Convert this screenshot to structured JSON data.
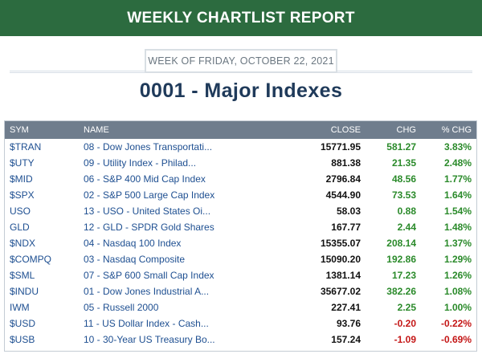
{
  "header": {
    "title": "WEEKLY CHARTLIST REPORT"
  },
  "week": {
    "label": "WEEK OF FRIDAY, OCTOBER 22, 2021"
  },
  "page": {
    "title": "0001 - Major Indexes"
  },
  "table": {
    "columns": {
      "sym": "SYM",
      "name": "NAME",
      "close": "CLOSE",
      "chg": "CHG",
      "pct": "% CHG"
    },
    "rows": [
      {
        "sym": "$TRAN",
        "name": "08 - Dow Jones Transportati...",
        "close": "15771.95",
        "chg": "581.27",
        "pct": "3.83%",
        "dir": "pos"
      },
      {
        "sym": "$UTY",
        "name": "09 - Utility Index - Philad...",
        "close": "881.38",
        "chg": "21.35",
        "pct": "2.48%",
        "dir": "pos"
      },
      {
        "sym": "$MID",
        "name": "06 - S&P 400 Mid Cap Index",
        "close": "2796.84",
        "chg": "48.56",
        "pct": "1.77%",
        "dir": "pos"
      },
      {
        "sym": "$SPX",
        "name": "02 - S&P 500 Large Cap Index",
        "close": "4544.90",
        "chg": "73.53",
        "pct": "1.64%",
        "dir": "pos"
      },
      {
        "sym": "USO",
        "name": "13 - USO - United States Oi...",
        "close": "58.03",
        "chg": "0.88",
        "pct": "1.54%",
        "dir": "pos"
      },
      {
        "sym": "GLD",
        "name": "12 - GLD - SPDR Gold Shares",
        "close": "167.77",
        "chg": "2.44",
        "pct": "1.48%",
        "dir": "pos"
      },
      {
        "sym": "$NDX",
        "name": "04 - Nasdaq 100 Index",
        "close": "15355.07",
        "chg": "208.14",
        "pct": "1.37%",
        "dir": "pos"
      },
      {
        "sym": "$COMPQ",
        "name": "03 - Nasdaq Composite",
        "close": "15090.20",
        "chg": "192.86",
        "pct": "1.29%",
        "dir": "pos"
      },
      {
        "sym": "$SML",
        "name": "07 - S&P 600 Small Cap Index",
        "close": "1381.14",
        "chg": "17.23",
        "pct": "1.26%",
        "dir": "pos"
      },
      {
        "sym": "$INDU",
        "name": "01 - Dow Jones Industrial A...",
        "close": "35677.02",
        "chg": "382.26",
        "pct": "1.08%",
        "dir": "pos"
      },
      {
        "sym": "IWM",
        "name": "05 - Russell 2000",
        "close": "227.41",
        "chg": "2.25",
        "pct": "1.00%",
        "dir": "pos"
      },
      {
        "sym": "$USD",
        "name": "11 - US Dollar Index - Cash...",
        "close": "93.76",
        "chg": "-0.20",
        "pct": "-0.22%",
        "dir": "neg"
      },
      {
        "sym": "$USB",
        "name": "10 - 30-Year US Treasury Bo...",
        "close": "157.24",
        "chg": "-1.09",
        "pct": "-0.69%",
        "dir": "neg"
      }
    ]
  },
  "colors": {
    "banner": "#2c6b3f",
    "header_bg": "#6f7d8d",
    "link": "#1e4f91",
    "positive": "#2a8a2a",
    "negative": "#c41717",
    "title": "#1f3a5a"
  }
}
